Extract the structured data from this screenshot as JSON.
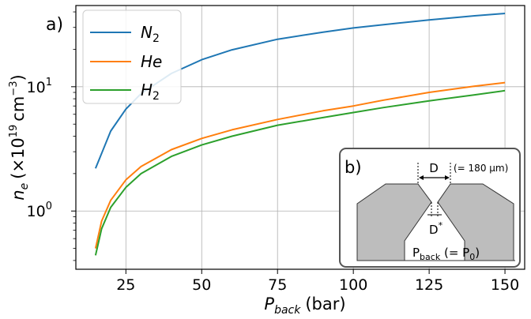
{
  "panel_label": "a)",
  "xlabel": {
    "main": "P",
    "sub": "back",
    "unit": "(bar)"
  },
  "ylabel": {
    "main": "n",
    "sub": "e",
    "unit_open": "(×10",
    "unit_exp": "19",
    "unit_cm": "cm",
    "unit_cm_exp": "−3",
    "unit_close": ")"
  },
  "chart_data": {
    "type": "line",
    "y_scale": "log",
    "xlim": [
      8.5,
      156.5
    ],
    "ylim": [
      0.34,
      45
    ],
    "grid": true,
    "legend_position": "top-left",
    "x_ticks": [
      25,
      50,
      75,
      100,
      125,
      150
    ],
    "x_tick_labels": [
      "25",
      "50",
      "75",
      "100",
      "125",
      "150"
    ],
    "y_ticks": [
      1,
      10
    ],
    "y_tick_labels": [
      {
        "base": "10",
        "exp": "0"
      },
      {
        "base": "10",
        "exp": "1"
      }
    ],
    "series": [
      {
        "name": "N",
        "name_sub": "2",
        "color": "#1f77b4",
        "x": [
          15,
          20,
          25,
          30,
          40,
          50,
          60,
          75,
          90,
          100,
          110,
          125,
          140,
          150
        ],
        "y": [
          2.2,
          4.4,
          6.6,
          8.8,
          12.8,
          16.5,
          19.8,
          24.1,
          27.5,
          29.7,
          31.6,
          34.5,
          37.2,
          38.9
        ]
      },
      {
        "name": "He",
        "name_sub": "",
        "color": "#ff7f0e",
        "x": [
          15,
          17,
          20,
          25,
          30,
          40,
          50,
          60,
          75,
          90,
          100,
          110,
          125,
          140,
          150
        ],
        "y": [
          0.5,
          0.83,
          1.22,
          1.78,
          2.28,
          3.12,
          3.84,
          4.5,
          5.45,
          6.4,
          7.0,
          7.8,
          9.0,
          10.1,
          10.8
        ]
      },
      {
        "name": "H",
        "name_sub": "2",
        "color": "#2ca02c",
        "x": [
          15,
          17,
          20,
          25,
          30,
          40,
          50,
          60,
          75,
          90,
          100,
          110,
          125,
          140,
          150
        ],
        "y": [
          0.44,
          0.72,
          1.07,
          1.55,
          2.0,
          2.75,
          3.4,
          4.0,
          4.9,
          5.65,
          6.2,
          6.8,
          7.7,
          8.6,
          9.3
        ]
      }
    ]
  },
  "inset": {
    "label": "b)",
    "d_label": "D",
    "d_value": "(= 180 μm)",
    "dstar_label": "D",
    "dstar_sup": "*",
    "pback_main": "P",
    "pback_sub": "back",
    "pback_eq": " (= P",
    "pback_eq_sub": "0",
    "pback_close": ")"
  }
}
